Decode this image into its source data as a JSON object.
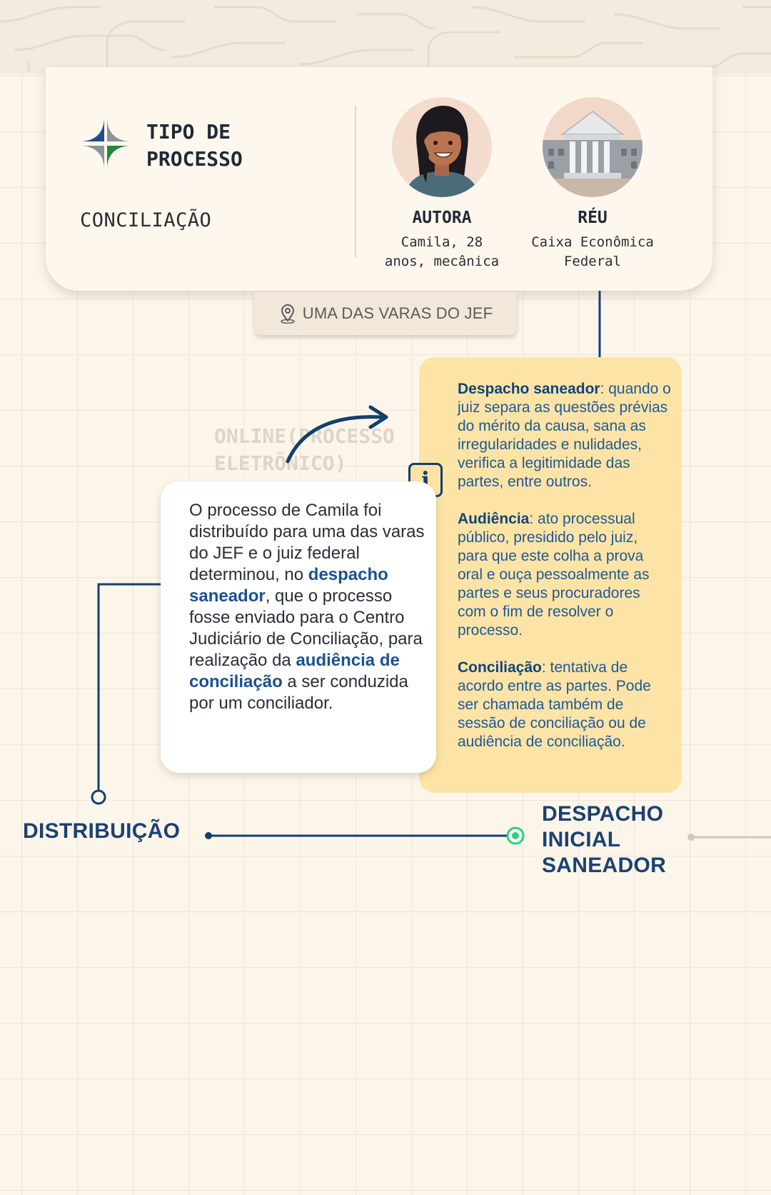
{
  "colors": {
    "navy": "#1a4272",
    "accent_blue": "#1a5293",
    "info_panel": "#fde4a6",
    "timeline_green": "#2ecc8f",
    "background": "#fcf5ea"
  },
  "process": {
    "type_title": "TIPO DE\nPROCESSO",
    "type_value": "CONCILIAÇÃO",
    "logo_icon": "jf-logo-icon"
  },
  "parties": {
    "autora": {
      "role": "AUTORA",
      "description": "Camila, 28\nanos, mecânica",
      "icon": "woman-avatar-icon"
    },
    "reu": {
      "role": "RÉU",
      "description": "Caixa Econômica\nFederal",
      "icon": "bank-building-icon"
    }
  },
  "location": {
    "label": "UMA DAS VARAS DO JEF",
    "icon": "map-pin-icon"
  },
  "online": {
    "label": "ONLINE(PROCESSO\nELETRÔNICO)"
  },
  "story": {
    "part1": "O processo de Camila foi distribuído para uma das varas do JEF e o juiz federal determinou, no ",
    "term1": "despacho saneador",
    "part2": ", que o processo fosse enviado para o Centro Judiciário de Conciliação, para realização da ",
    "term2": "audiência de conciliação",
    "part3": " a ser conduzida por um conciliador."
  },
  "info": {
    "icon": "info-icon",
    "icon_glyph": "i",
    "entries": [
      {
        "term": "Despacho saneador",
        "definition": ": quando o juiz separa as questões prévias do mérito da causa, sana as irregularidades e nulidades, verifica a legitimidade das partes, entre outros."
      },
      {
        "term": "Audiência",
        "definition": ": ato processual público, presidido pelo juiz, para que este colha a prova oral e ouça pessoalmente as partes e seus procuradores com o fim de resolver o processo."
      },
      {
        "term": "Conciliação",
        "definition": ": tentativa de acordo entre as partes. Pode ser chamada também de sessão de conciliação ou de audiência de conciliação."
      }
    ]
  },
  "timeline": {
    "stage1": "DISTRIBUIÇÃO",
    "stage2": "DESPACHO\nINICIAL\nSANEADOR"
  }
}
